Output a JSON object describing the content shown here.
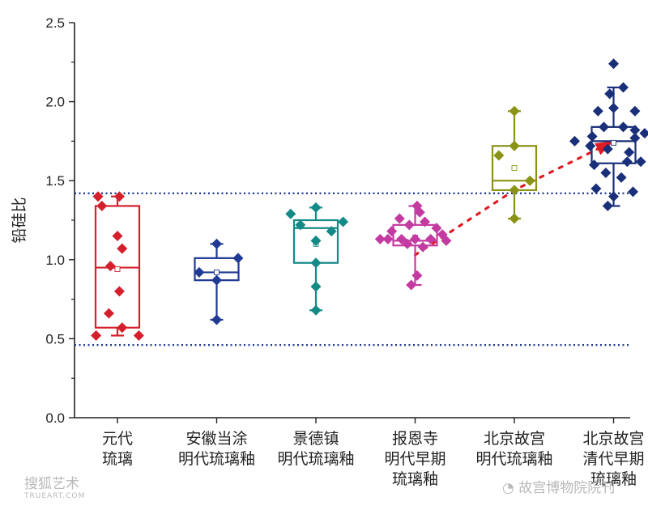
{
  "chart_data": {
    "type": "box",
    "title": "",
    "xlabel": "",
    "ylabel": "铅硅比",
    "ylim": [
      0,
      2.5
    ],
    "yticks": [
      "0.0",
      "0.5",
      "1.0",
      "1.5",
      "2.0",
      "2.5"
    ],
    "reference_lines": [
      1.42,
      0.46
    ],
    "categories": [
      {
        "label_lines": [
          "元代",
          "琉璃"
        ],
        "color": "#d4202c",
        "box": {
          "min": 0.52,
          "q1": 0.57,
          "median": 0.95,
          "q3": 1.34,
          "max": 1.4,
          "mean": 0.94
        },
        "points": [
          [
            -0.5,
            1.4
          ],
          [
            0.05,
            1.4
          ],
          [
            -0.4,
            1.34
          ],
          [
            0.0,
            1.15
          ],
          [
            0.12,
            1.07
          ],
          [
            -0.18,
            0.96
          ],
          [
            0.05,
            0.8
          ],
          [
            -0.22,
            0.66
          ],
          [
            0.12,
            0.57
          ],
          [
            -0.55,
            0.52
          ],
          [
            0.55,
            0.52
          ]
        ]
      },
      {
        "label_lines": [
          "安徽当涂",
          "明代琉璃釉"
        ],
        "color": "#1f3a93",
        "box": {
          "min": 0.62,
          "q1": 0.87,
          "median": 0.92,
          "q3": 1.01,
          "max": 1.1,
          "mean": 0.92
        },
        "points": [
          [
            0.0,
            1.1
          ],
          [
            0.55,
            1.01
          ],
          [
            -0.45,
            0.92
          ],
          [
            0.0,
            0.87
          ],
          [
            0.0,
            0.62
          ]
        ]
      },
      {
        "label_lines": [
          "景德镇",
          "明代琉璃釉"
        ],
        "color": "#148a86",
        "box": {
          "min": 0.68,
          "q1": 0.98,
          "median": 1.2,
          "q3": 1.25,
          "max": 1.33,
          "mean": 1.1
        },
        "points": [
          [
            0.0,
            1.33
          ],
          [
            -0.65,
            1.29
          ],
          [
            0.7,
            1.24
          ],
          [
            -0.4,
            1.22
          ],
          [
            0.4,
            1.18
          ],
          [
            0.0,
            1.12
          ],
          [
            0.0,
            0.98
          ],
          [
            0.0,
            0.83
          ],
          [
            0.0,
            0.68
          ]
        ]
      },
      {
        "label_lines": [
          "报恩寺",
          "明代早期",
          "琉璃釉"
        ],
        "color": "#c33ba1",
        "box": {
          "min": 0.84,
          "q1": 1.09,
          "median": 1.12,
          "q3": 1.22,
          "max": 1.34,
          "mean": 1.14
        },
        "points": [
          [
            0.05,
            1.34
          ],
          [
            0.12,
            1.3
          ],
          [
            -0.4,
            1.26
          ],
          [
            0.25,
            1.24
          ],
          [
            -0.15,
            1.22
          ],
          [
            0.55,
            1.2
          ],
          [
            -0.6,
            1.18
          ],
          [
            0.7,
            1.16
          ],
          [
            -0.9,
            1.13
          ],
          [
            -0.7,
            1.13
          ],
          [
            -0.35,
            1.13
          ],
          [
            0.0,
            1.13
          ],
          [
            0.4,
            1.13
          ],
          [
            0.8,
            1.12
          ],
          [
            -0.2,
            1.1
          ],
          [
            0.2,
            1.08
          ],
          [
            0.05,
            0.9
          ],
          [
            -0.1,
            0.84
          ]
        ]
      },
      {
        "label_lines": [
          "北京故宫",
          "明代琉璃釉"
        ],
        "color": "#8a9316",
        "box": {
          "min": 1.26,
          "q1": 1.44,
          "median": 1.5,
          "q3": 1.72,
          "max": 1.94,
          "mean": 1.58
        },
        "points": [
          [
            0.0,
            1.94
          ],
          [
            0.0,
            1.72
          ],
          [
            -0.4,
            1.66
          ],
          [
            0.4,
            1.5
          ],
          [
            0.0,
            1.44
          ],
          [
            0.0,
            1.26
          ]
        ]
      },
      {
        "label_lines": [
          "北京故宫",
          "清代早期",
          "琉璃釉"
        ],
        "color": "#1a2f7a",
        "box": {
          "min": 1.34,
          "q1": 1.61,
          "median": 1.75,
          "q3": 1.84,
          "max": 2.09,
          "mean": 1.74
        },
        "points": [
          [
            0.0,
            2.24
          ],
          [
            0.25,
            2.09
          ],
          [
            -0.1,
            2.05
          ],
          [
            0.0,
            1.96
          ],
          [
            -0.4,
            1.94
          ],
          [
            0.55,
            1.94
          ],
          [
            -0.25,
            1.84
          ],
          [
            0.25,
            1.84
          ],
          [
            0.55,
            1.82
          ],
          [
            0.8,
            1.8
          ],
          [
            -0.55,
            1.78
          ],
          [
            0.55,
            1.77
          ],
          [
            -1.0,
            1.75
          ],
          [
            1.1,
            1.74
          ],
          [
            -0.6,
            1.72
          ],
          [
            -0.15,
            1.7
          ],
          [
            0.4,
            1.68
          ],
          [
            -0.5,
            1.6
          ],
          [
            0.35,
            1.62
          ],
          [
            0.7,
            1.62
          ],
          [
            -0.2,
            1.55
          ],
          [
            0.2,
            1.52
          ],
          [
            -0.45,
            1.45
          ],
          [
            0.5,
            1.43
          ],
          [
            0.0,
            1.4
          ],
          [
            -0.15,
            1.34
          ]
        ]
      }
    ],
    "trend_line": {
      "color": "#e01b24",
      "points": [
        [
          3,
          1.03
        ],
        [
          4,
          1.44
        ],
        [
          5,
          1.75
        ]
      ]
    }
  },
  "watermarks": {
    "left": "搜狐艺术",
    "left_small": "TRUEART.COM",
    "right": "故宫博物院院刊"
  }
}
